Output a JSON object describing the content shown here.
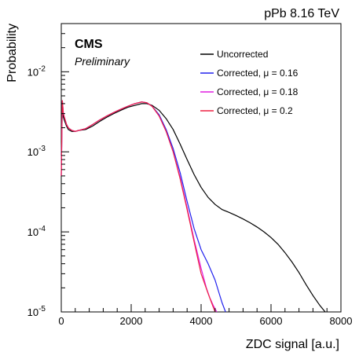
{
  "chart_data": {
    "type": "line",
    "title": "",
    "energy_label": "pPb 8.16 TeV",
    "experiment": "CMS",
    "experiment_sub": "Preliminary",
    "xlabel": "ZDC signal [a.u.]",
    "ylabel": "Probability",
    "xlim": [
      0,
      8000
    ],
    "ylim": [
      1e-05,
      0.04
    ],
    "yscale": "log",
    "x_ticks": [
      "0",
      "2000",
      "4000",
      "6000",
      "8000"
    ],
    "y_ticks": [
      {
        "value": 1e-05,
        "base": "10",
        "exp": "-5"
      },
      {
        "value": 0.0001,
        "base": "10",
        "exp": "-4"
      },
      {
        "value": 0.001,
        "base": "10",
        "exp": "-3"
      },
      {
        "value": 0.01,
        "base": "10",
        "exp": "-2"
      }
    ],
    "legend_position": "top-right",
    "grid": false,
    "series": [
      {
        "name": "Uncorrected",
        "color": "#000000",
        "x": [
          0,
          30,
          60,
          100,
          150,
          200,
          300,
          400,
          500,
          700,
          900,
          1100,
          1300,
          1500,
          1700,
          1900,
          2100,
          2300,
          2450,
          2600,
          2800,
          3000,
          3200,
          3400,
          3600,
          3800,
          4000,
          4200,
          4400,
          4600,
          4800,
          5000,
          5200,
          5400,
          5600,
          5800,
          6000,
          6200,
          6400,
          6600,
          6800,
          7000,
          7200,
          7400,
          7550
        ],
        "y": [
          0.0009,
          0.0042,
          0.0027,
          0.0024,
          0.0021,
          0.0019,
          0.0018,
          0.0018,
          0.00185,
          0.0019,
          0.0021,
          0.0024,
          0.0027,
          0.003,
          0.0033,
          0.0036,
          0.0038,
          0.004,
          0.004,
          0.0038,
          0.0033,
          0.0026,
          0.0019,
          0.00125,
          0.0008,
          0.00052,
          0.00036,
          0.00027,
          0.00022,
          0.00019,
          0.000175,
          0.00016,
          0.000145,
          0.00013,
          0.000115,
          0.0001,
          8.5e-05,
          7e-05,
          5.5e-05,
          4.2e-05,
          3.1e-05,
          2.2e-05,
          1.6e-05,
          1.2e-05,
          1e-05
        ]
      },
      {
        "name": "Corrected, μ = 0.16",
        "color": "#2222ee",
        "x": [
          0,
          30,
          60,
          100,
          150,
          200,
          300,
          400,
          500,
          700,
          900,
          1100,
          1300,
          1500,
          1700,
          1900,
          2100,
          2300,
          2450,
          2600,
          2800,
          3000,
          3200,
          3400,
          3600,
          3800,
          4000,
          4200,
          4400,
          4500,
          4600,
          4700
        ],
        "y": [
          0.0005,
          0.0043,
          0.003,
          0.0026,
          0.0022,
          0.002,
          0.00185,
          0.0018,
          0.00185,
          0.00195,
          0.0022,
          0.0025,
          0.0028,
          0.0031,
          0.0034,
          0.0037,
          0.004,
          0.0042,
          0.0041,
          0.0037,
          0.0029,
          0.0019,
          0.0011,
          0.00055,
          0.00024,
          0.00011,
          6e-05,
          4e-05,
          2.5e-05,
          1.8e-05,
          1.3e-05,
          1e-05
        ]
      },
      {
        "name": "Corrected, μ = 0.18",
        "color": "#e01ee0",
        "x": [
          0,
          30,
          60,
          100,
          150,
          200,
          300,
          400,
          500,
          700,
          900,
          1100,
          1300,
          1500,
          1700,
          1900,
          2100,
          2300,
          2450,
          2600,
          2800,
          3000,
          3200,
          3400,
          3600,
          3800,
          4000,
          4150,
          4250,
          4350,
          4450
        ],
        "y": [
          0.0005,
          0.0044,
          0.003,
          0.0026,
          0.0022,
          0.002,
          0.00185,
          0.0018,
          0.00185,
          0.00195,
          0.0022,
          0.0025,
          0.0028,
          0.0031,
          0.0034,
          0.0037,
          0.004,
          0.0042,
          0.0041,
          0.0037,
          0.0028,
          0.0018,
          0.001,
          0.00048,
          0.0002,
          8e-05,
          3.5e-05,
          2e-05,
          1.5e-05,
          1.2e-05,
          1e-05
        ]
      },
      {
        "name": "Corrected, μ = 0.2",
        "color": "#ee2244",
        "x": [
          0,
          30,
          60,
          100,
          150,
          200,
          300,
          400,
          500,
          700,
          900,
          1100,
          1300,
          1500,
          1700,
          1900,
          2100,
          2300,
          2450,
          2600,
          2800,
          3000,
          3200,
          3400,
          3600,
          3800,
          4000,
          4200,
          4300,
          4400
        ],
        "y": [
          0.0005,
          0.0044,
          0.003,
          0.0026,
          0.0022,
          0.002,
          0.00185,
          0.0018,
          0.00185,
          0.00195,
          0.0022,
          0.0025,
          0.0028,
          0.0031,
          0.0034,
          0.0037,
          0.004,
          0.0042,
          0.0041,
          0.0037,
          0.0028,
          0.0018,
          0.001,
          0.00046,
          0.00019,
          7.5e-05,
          3e-05,
          1.7e-05,
          1.3e-05,
          1e-05
        ]
      }
    ]
  }
}
